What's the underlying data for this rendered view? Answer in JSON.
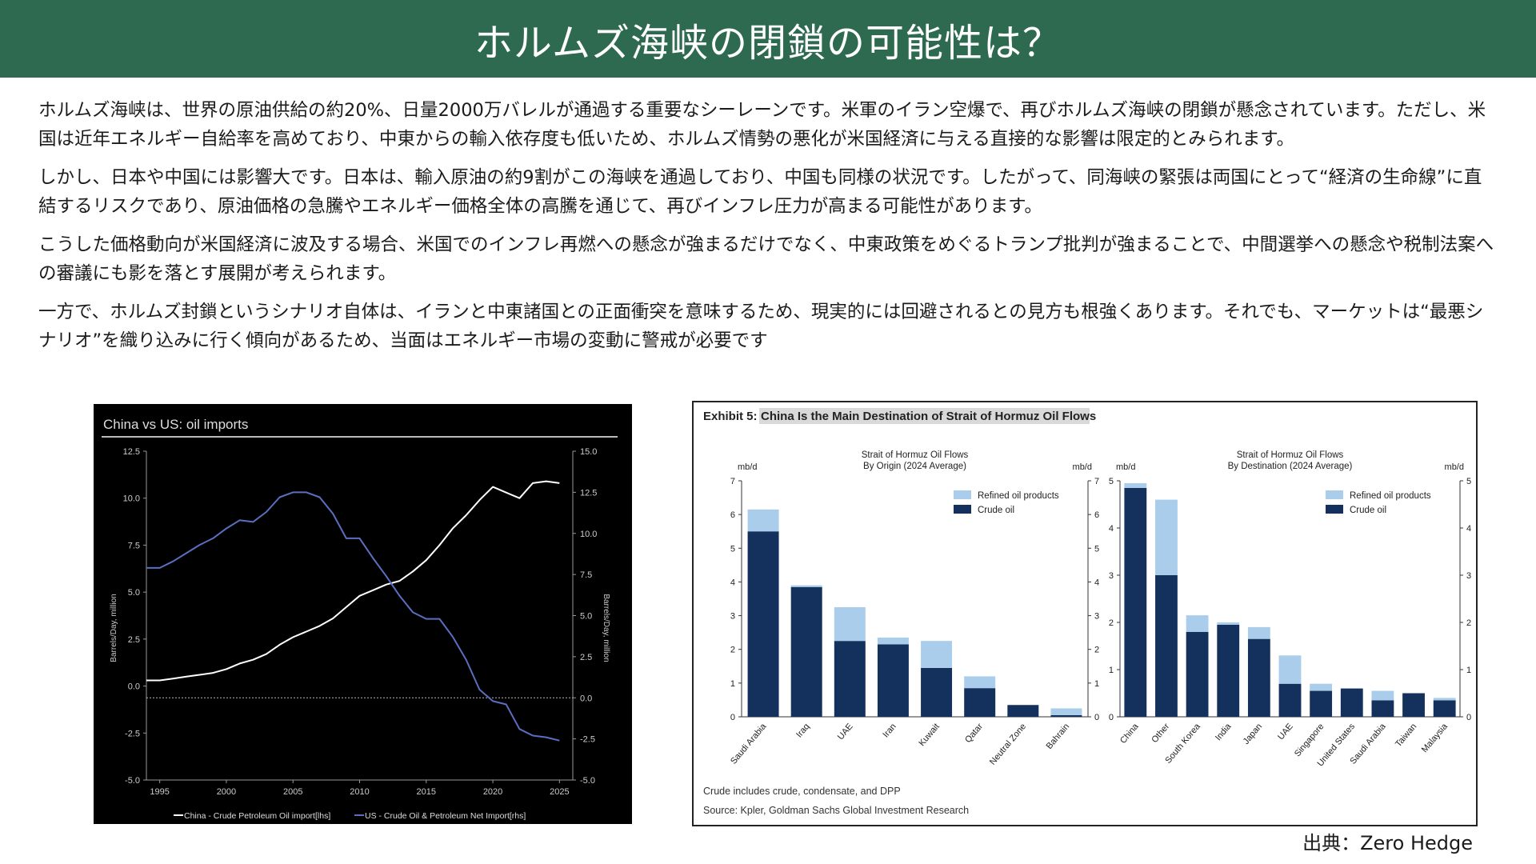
{
  "page": {
    "title": "ホルムズ海峡の閉鎖の可能性は？",
    "paragraphs": [
      "ホルムズ海峡は、世界の原油供給の約20%、日量2000万バレルが通過する重要なシーレーンです。米軍のイラン空爆で、再びホルムズ海峡の閉鎖が懸念されています。ただし、米国は近年エネルギー自給率を高めており、中東からの輸入依存度も低いため、ホルムズ情勢の悪化が米国経済に与える直接的な影響は限定的とみられます。",
      "しかし、日本や中国には影響大です。日本は、輸入原油の約9割がこの海峡を通過しており、中国も同様の状況です。したがって、同海峡の緊張は両国にとって“経済の生命線”に直結するリスクであり、原油価格の急騰やエネルギー価格全体の高騰を通じて、再びインフレ圧力が高まる可能性があります。",
      "こうした価格動向が米国経済に波及する場合、米国でのインフレ再燃への懸念が強まるだけでなく、中東政策をめぐるトランプ批判が強まることで、中間選挙への懸念や税制法案への審議にも影を落とす展開が考えられます。",
      "一方で、ホルムズ封鎖というシナリオ自体は、イランと中東諸国との正面衝突を意味するため、現実的には回避されるとの見方も根強くあります。それでも、マーケットは“最悪シナリオ”を織り込みに行く傾向があるため、当面はエネルギー市場の変動に警戒が必要です"
    ],
    "source": "出典：Zero Hedge",
    "colors": {
      "header": "#2e6a4f",
      "crude": "#14305c",
      "refined": "#a9cdea",
      "us_line": "#5b6fc0",
      "china_line": "#ffffff"
    }
  },
  "chart_data": [
    {
      "type": "line",
      "title": "China vs US: oil imports",
      "ylabel_left": "Barrels/Day, million",
      "ylabel_right": "Barrels/Day, million",
      "ylim_left": [
        -5.0,
        12.5
      ],
      "ylim_right": [
        -5.0,
        15.0
      ],
      "xlim": [
        1994,
        2026
      ],
      "x_ticks": [
        "1995",
        "2000",
        "2005",
        "2010",
        "2015",
        "2020",
        "2025"
      ],
      "y_ticks_left": [
        "12.5",
        "10.0",
        "7.5",
        "5.0",
        "2.5",
        "0.0",
        "-2.5",
        "-5.0"
      ],
      "y_ticks_right": [
        "15.0",
        "12.5",
        "10.0",
        "7.5",
        "5.0",
        "2.5",
        "0.0",
        "-2.5",
        "-5.0"
      ],
      "legend": [
        "China - Crude Petroleum Oil import[lhs]",
        "US - Crude Oil & Petroleum Net Import[rhs]"
      ],
      "series": [
        {
          "name": "China - Crude Petroleum Oil import[lhs]",
          "axis": "left",
          "x": [
            1994,
            1995,
            1996,
            1997,
            1998,
            1999,
            2000,
            2001,
            2002,
            2003,
            2004,
            2005,
            2006,
            2007,
            2008,
            2009,
            2010,
            2011,
            2012,
            2013,
            2014,
            2015,
            2016,
            2017,
            2018,
            2019,
            2020,
            2021,
            2022,
            2023,
            2024,
            2025
          ],
          "values": [
            0.3,
            0.3,
            0.4,
            0.5,
            0.6,
            0.7,
            0.9,
            1.2,
            1.4,
            1.7,
            2.2,
            2.6,
            2.9,
            3.2,
            3.6,
            4.2,
            4.8,
            5.1,
            5.4,
            5.6,
            6.1,
            6.7,
            7.5,
            8.4,
            9.1,
            9.9,
            10.6,
            10.3,
            10.0,
            10.8,
            10.9,
            10.8
          ]
        },
        {
          "name": "US - Crude Oil & Petroleum Net Import[rhs]",
          "axis": "right",
          "x": [
            1994,
            1995,
            1996,
            1997,
            1998,
            1999,
            2000,
            2001,
            2002,
            2003,
            2004,
            2005,
            2006,
            2007,
            2008,
            2009,
            2010,
            2011,
            2012,
            2013,
            2014,
            2015,
            2016,
            2017,
            2018,
            2019,
            2020,
            2021,
            2022,
            2023,
            2024,
            2025
          ],
          "values": [
            7.9,
            7.9,
            8.3,
            8.8,
            9.3,
            9.7,
            10.3,
            10.8,
            10.7,
            11.3,
            12.2,
            12.5,
            12.5,
            12.2,
            11.2,
            9.7,
            9.7,
            8.5,
            7.4,
            6.2,
            5.2,
            4.8,
            4.8,
            3.7,
            2.3,
            0.5,
            -0.2,
            -0.4,
            -1.9,
            -2.3,
            -2.4,
            -2.6
          ]
        }
      ]
    },
    {
      "type": "bar",
      "exhibit_label": "Exhibit 5:",
      "title": "China Is the Main Destination of Strait of Hormuz Oil Flows",
      "footnote": "Crude includes crude, condensate, and DPP",
      "source": "Source: Kpler, Goldman Sachs Global Investment Research",
      "panels": [
        {
          "title_line1": "Strait of Hormuz Oil Flows",
          "title_line2": "By Origin (2024 Average)",
          "unit": "mb/d",
          "ylim": [
            0,
            7
          ],
          "y_ticks": [
            "0",
            "1",
            "2",
            "3",
            "4",
            "5",
            "6",
            "7"
          ],
          "legend": [
            "Refined oil products",
            "Crude oil"
          ],
          "categories": [
            "Saudi Arabia",
            "Iraq",
            "UAE",
            "Iran",
            "Kuwait",
            "Qatar",
            "Neutral Zone",
            "Bahrain"
          ],
          "series": [
            {
              "name": "Crude oil",
              "values": [
                5.5,
                3.85,
                2.25,
                2.15,
                1.45,
                0.85,
                0.35,
                0.05
              ]
            },
            {
              "name": "Refined oil products",
              "values": [
                0.65,
                0.05,
                1.0,
                0.2,
                0.8,
                0.35,
                0.0,
                0.2
              ]
            }
          ]
        },
        {
          "title_line1": "Strait of Hormuz Oil Flows",
          "title_line2": "By Destination (2024 Average)",
          "unit": "mb/d",
          "ylim": [
            0,
            5
          ],
          "y_ticks": [
            "0",
            "1",
            "2",
            "3",
            "4",
            "5"
          ],
          "legend": [
            "Refined oil products",
            "Crude oil"
          ],
          "categories": [
            "China",
            "Other",
            "South Korea",
            "India",
            "Japan",
            "UAE",
            "Singapore",
            "United States",
            "Saudi Arabia",
            "Taiwan",
            "Malaysia"
          ],
          "series": [
            {
              "name": "Crude oil",
              "values": [
                4.85,
                3.0,
                1.8,
                1.95,
                1.65,
                0.7,
                0.55,
                0.6,
                0.35,
                0.5,
                0.35
              ]
            },
            {
              "name": "Refined oil products",
              "values": [
                0.1,
                1.6,
                0.35,
                0.05,
                0.25,
                0.6,
                0.15,
                0.0,
                0.2,
                0.0,
                0.05
              ]
            }
          ]
        }
      ]
    }
  ]
}
